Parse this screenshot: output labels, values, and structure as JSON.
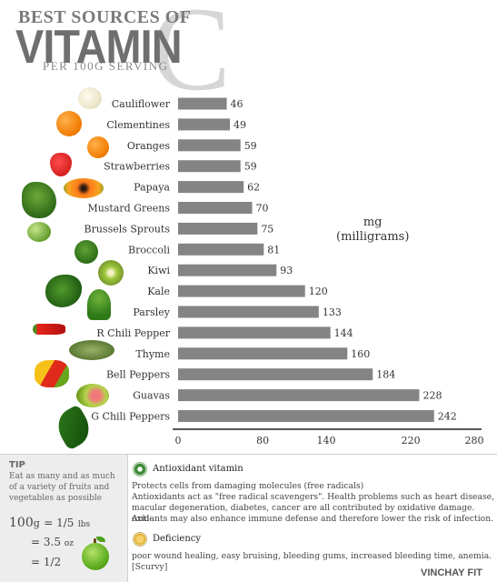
{
  "header": {
    "line1": "BEST SOURCES OF",
    "line2": "VITAMIN",
    "big_letter": "C",
    "subtitle": "PER 100G SERVING"
  },
  "chart_data": {
    "type": "bar",
    "orientation": "horizontal",
    "categories": [
      "Cauliflower",
      "Clementines",
      "Oranges",
      "Strawberries",
      "Papaya",
      "Mustard Greens",
      "Brussels Sprouts",
      "Broccoli",
      "Kiwi",
      "Kale",
      "Parsley",
      "R Chili Pepper",
      "Thyme",
      "Bell Peppers",
      "Guavas",
      "G Chili Peppers"
    ],
    "values": [
      46,
      49,
      59,
      59,
      62,
      70,
      75,
      81,
      93,
      120,
      133,
      144,
      160,
      184,
      228,
      242
    ],
    "xticks": [
      "0",
      "80",
      "140",
      "220",
      "280"
    ],
    "xlim": [
      0,
      280
    ],
    "unit_label_1": "mg",
    "unit_label_2": "(milligrams)",
    "bar_color": "#848484",
    "grid": false
  },
  "tip": {
    "title": "TIP",
    "text": "Eat as many and as much of a variety of fruits and vegetables as possible",
    "conv1_value": "100",
    "conv1_unit": "g",
    "conv1_rest": "= 1/5",
    "conv1_rest_unit": "lbs",
    "conv2_value": "= 3.5",
    "conv2_unit": "oz",
    "conv3_value": "= 1/2"
  },
  "sections": {
    "antioxidant_title": "Antioxidant vitamin",
    "antioxidant_line1": "Protects cells from damaging molecules (free radicals)",
    "antioxidant_line2": "Antioxidants act as \"free radical scavengers\". Health problems such as heart disease,",
    "antioxidant_line3": "macular degeneration, diabetes, cancer are all contributed by oxidative damage. Anti-",
    "antioxidant_line4": "oxidants may also enhance immune defense and therefore lower the risk of infection.",
    "deficiency_title": "Deficiency",
    "deficiency_line1": "poor wound healing, easy bruising, bleeding gums, increased bleeding time, anemia.",
    "deficiency_line2": "[Scurvy]"
  },
  "brand": "VINCHAY FIT",
  "icons": [
    "cauliflower-icon",
    "clementine-icon",
    "orange-icon",
    "strawberry-icon",
    "papaya-icon",
    "mustard-greens-icon",
    "brussels-sprouts-icon",
    "broccoli-icon",
    "kiwi-icon",
    "kale-icon",
    "parsley-icon",
    "red-chili-icon",
    "thyme-icon",
    "bell-pepper-icon",
    "guava-icon",
    "green-chili-icon",
    "apple-icon"
  ]
}
